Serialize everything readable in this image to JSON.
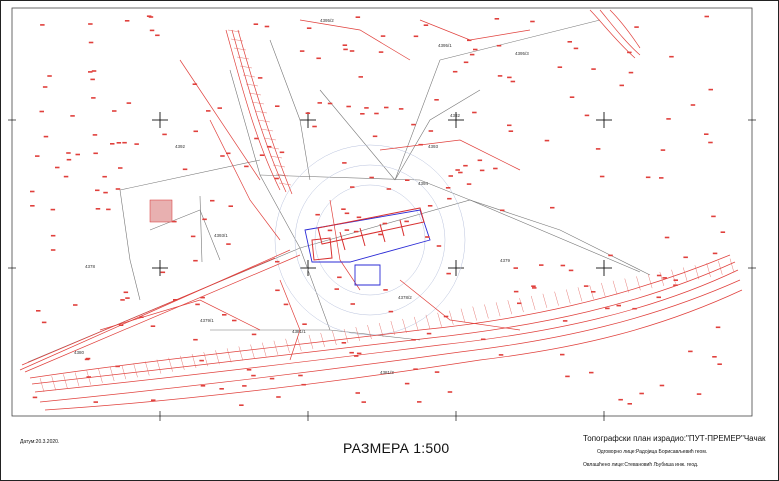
{
  "footer": {
    "date": "Датум:20.3.2020.",
    "scale": "РАЗМЕРА 1:500",
    "title": "Топографски план израдио:\"ПУТ-ПРЕМЕР\"Чачак",
    "responsible": "Одговорно лице:Радојица Борисављевић геом.",
    "authorized": "Овлашћено лице:Стевановић Љубиша инж. геод."
  },
  "parcels": [
    "4395/2",
    "4395/1",
    "4395/3",
    "4392",
    "4393",
    "4394",
    "4393/1",
    "4378",
    "4379",
    "4378/2",
    "4379/1",
    "4381/1",
    "4380",
    "4381/3",
    "4382"
  ],
  "colors": {
    "survey_points": "#e0403c",
    "grid_marks": "#111111",
    "outlines": "#6b6b6b",
    "building": "#2b2bd6",
    "border": "#222222"
  }
}
